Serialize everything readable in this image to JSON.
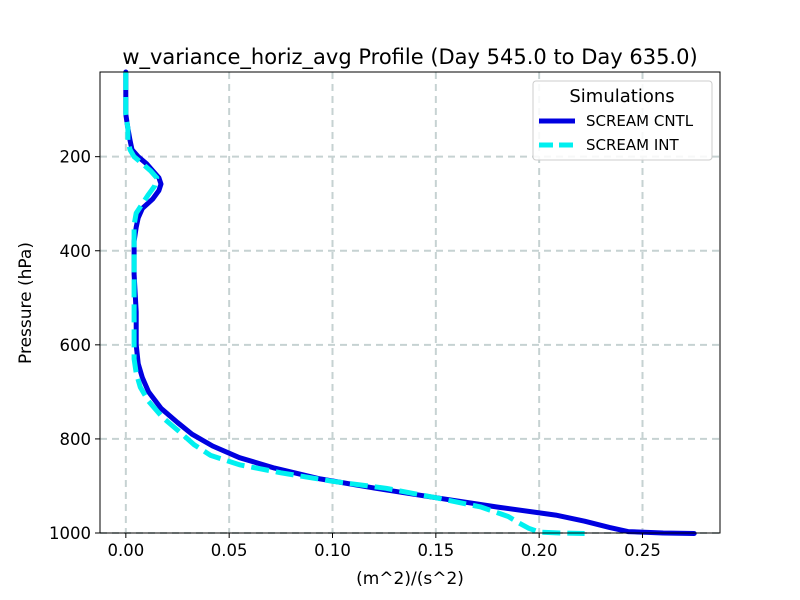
{
  "chart_data": {
    "type": "line",
    "title": "w_variance_horiz_avg Profile (Day 545.0 to Day 635.0)",
    "xlabel": "(m^2)/(s^2)",
    "ylabel": "Pressure (hPa)",
    "xlim": [
      -0.0125,
      0.2875
    ],
    "ylim": [
      1000,
      20
    ],
    "y_inverted": true,
    "grid": true,
    "xticks": [
      0.0,
      0.05,
      0.1,
      0.15,
      0.2,
      0.25
    ],
    "xtick_labels": [
      "0.00",
      "0.05",
      "0.10",
      "0.15",
      "0.20",
      "0.25"
    ],
    "yticks": [
      200,
      400,
      600,
      800,
      1000
    ],
    "ytick_labels": [
      "200",
      "400",
      "600",
      "800",
      "1000"
    ],
    "legend": {
      "title": "Simulations",
      "placement": "top-right"
    },
    "series": [
      {
        "name": "SCREAM CNTL",
        "color": "#0000e0",
        "style": "solid",
        "points": [
          [
            0.0,
            20
          ],
          [
            0.0,
            50
          ],
          [
            0.0,
            80
          ],
          [
            0.0,
            110
          ],
          [
            0.001,
            140
          ],
          [
            0.002,
            165
          ],
          [
            0.003,
            185
          ],
          [
            0.006,
            200
          ],
          [
            0.01,
            215
          ],
          [
            0.013,
            230
          ],
          [
            0.016,
            245
          ],
          [
            0.017,
            258
          ],
          [
            0.016,
            272
          ],
          [
            0.013,
            290
          ],
          [
            0.008,
            310
          ],
          [
            0.006,
            330
          ],
          [
            0.005,
            350
          ],
          [
            0.004,
            380
          ],
          [
            0.004,
            450
          ],
          [
            0.005,
            530
          ],
          [
            0.005,
            600
          ],
          [
            0.006,
            640
          ],
          [
            0.008,
            670
          ],
          [
            0.011,
            700
          ],
          [
            0.017,
            735
          ],
          [
            0.025,
            765
          ],
          [
            0.032,
            790
          ],
          [
            0.042,
            815
          ],
          [
            0.055,
            840
          ],
          [
            0.072,
            862
          ],
          [
            0.094,
            885
          ],
          [
            0.121,
            905
          ],
          [
            0.15,
            925
          ],
          [
            0.18,
            945
          ],
          [
            0.208,
            962
          ],
          [
            0.222,
            975
          ],
          [
            0.234,
            988
          ],
          [
            0.243,
            997
          ],
          [
            0.26,
            1000
          ],
          [
            0.275,
            1001
          ]
        ]
      },
      {
        "name": "SCREAM INT",
        "color": "#00f0f0",
        "style": "dashed",
        "points": [
          [
            0.0,
            20
          ],
          [
            0.0,
            50
          ],
          [
            0.0,
            80
          ],
          [
            0.0,
            110
          ],
          [
            0.001,
            140
          ],
          [
            0.001,
            165
          ],
          [
            0.002,
            185
          ],
          [
            0.004,
            200
          ],
          [
            0.008,
            215
          ],
          [
            0.012,
            230
          ],
          [
            0.015,
            245
          ],
          [
            0.014,
            262
          ],
          [
            0.011,
            280
          ],
          [
            0.008,
            300
          ],
          [
            0.005,
            320
          ],
          [
            0.004,
            345
          ],
          [
            0.004,
            370
          ],
          [
            0.004,
            450
          ],
          [
            0.004,
            530
          ],
          [
            0.004,
            600
          ],
          [
            0.004,
            630
          ],
          [
            0.005,
            660
          ],
          [
            0.007,
            690
          ],
          [
            0.011,
            720
          ],
          [
            0.018,
            755
          ],
          [
            0.026,
            785
          ],
          [
            0.033,
            812
          ],
          [
            0.041,
            835
          ],
          [
            0.055,
            855
          ],
          [
            0.075,
            872
          ],
          [
            0.1,
            890
          ],
          [
            0.126,
            905
          ],
          [
            0.15,
            925
          ],
          [
            0.172,
            945
          ],
          [
            0.185,
            965
          ],
          [
            0.19,
            978
          ],
          [
            0.195,
            990
          ],
          [
            0.2,
            998
          ],
          [
            0.21,
            1000
          ],
          [
            0.222,
            1001
          ]
        ]
      }
    ]
  }
}
